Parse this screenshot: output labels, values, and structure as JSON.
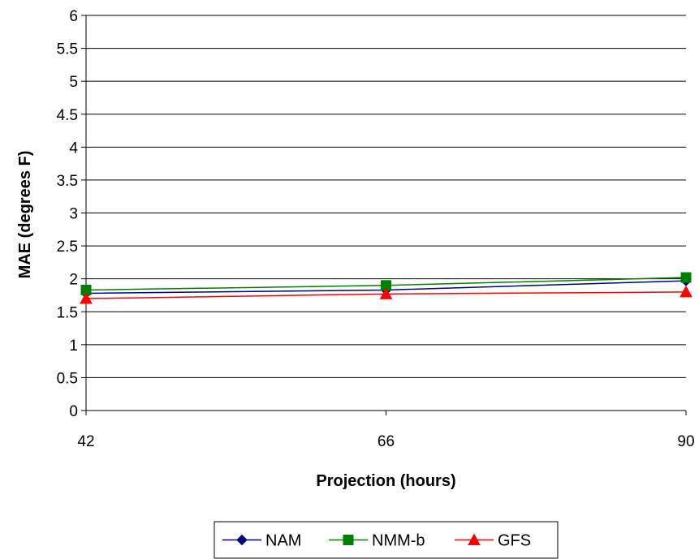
{
  "chart_data": {
    "type": "line",
    "x": [
      42,
      66,
      90
    ],
    "series": [
      {
        "name": "NAM",
        "values": [
          1.78,
          1.83,
          1.97
        ],
        "color": "#000080",
        "marker": "diamond"
      },
      {
        "name": "NMM-b",
        "values": [
          1.83,
          1.9,
          2.02
        ],
        "color": "#008000",
        "marker": "square"
      },
      {
        "name": "GFS",
        "values": [
          1.7,
          1.77,
          1.8
        ],
        "color": "#ff0000",
        "marker": "triangle"
      }
    ],
    "title": "",
    "xlabel": "Projection (hours)",
    "ylabel": "MAE (degrees F)",
    "ylim": [
      0,
      6
    ],
    "yticks": [
      "0",
      "0.5",
      "1",
      "1.5",
      "2",
      "2.5",
      "3",
      "3.5",
      "4",
      "4.5",
      "5",
      "5.5",
      "6"
    ],
    "xticks": [
      "42",
      "66",
      "90"
    ],
    "grid": "horizontal",
    "legend": "bottom"
  }
}
